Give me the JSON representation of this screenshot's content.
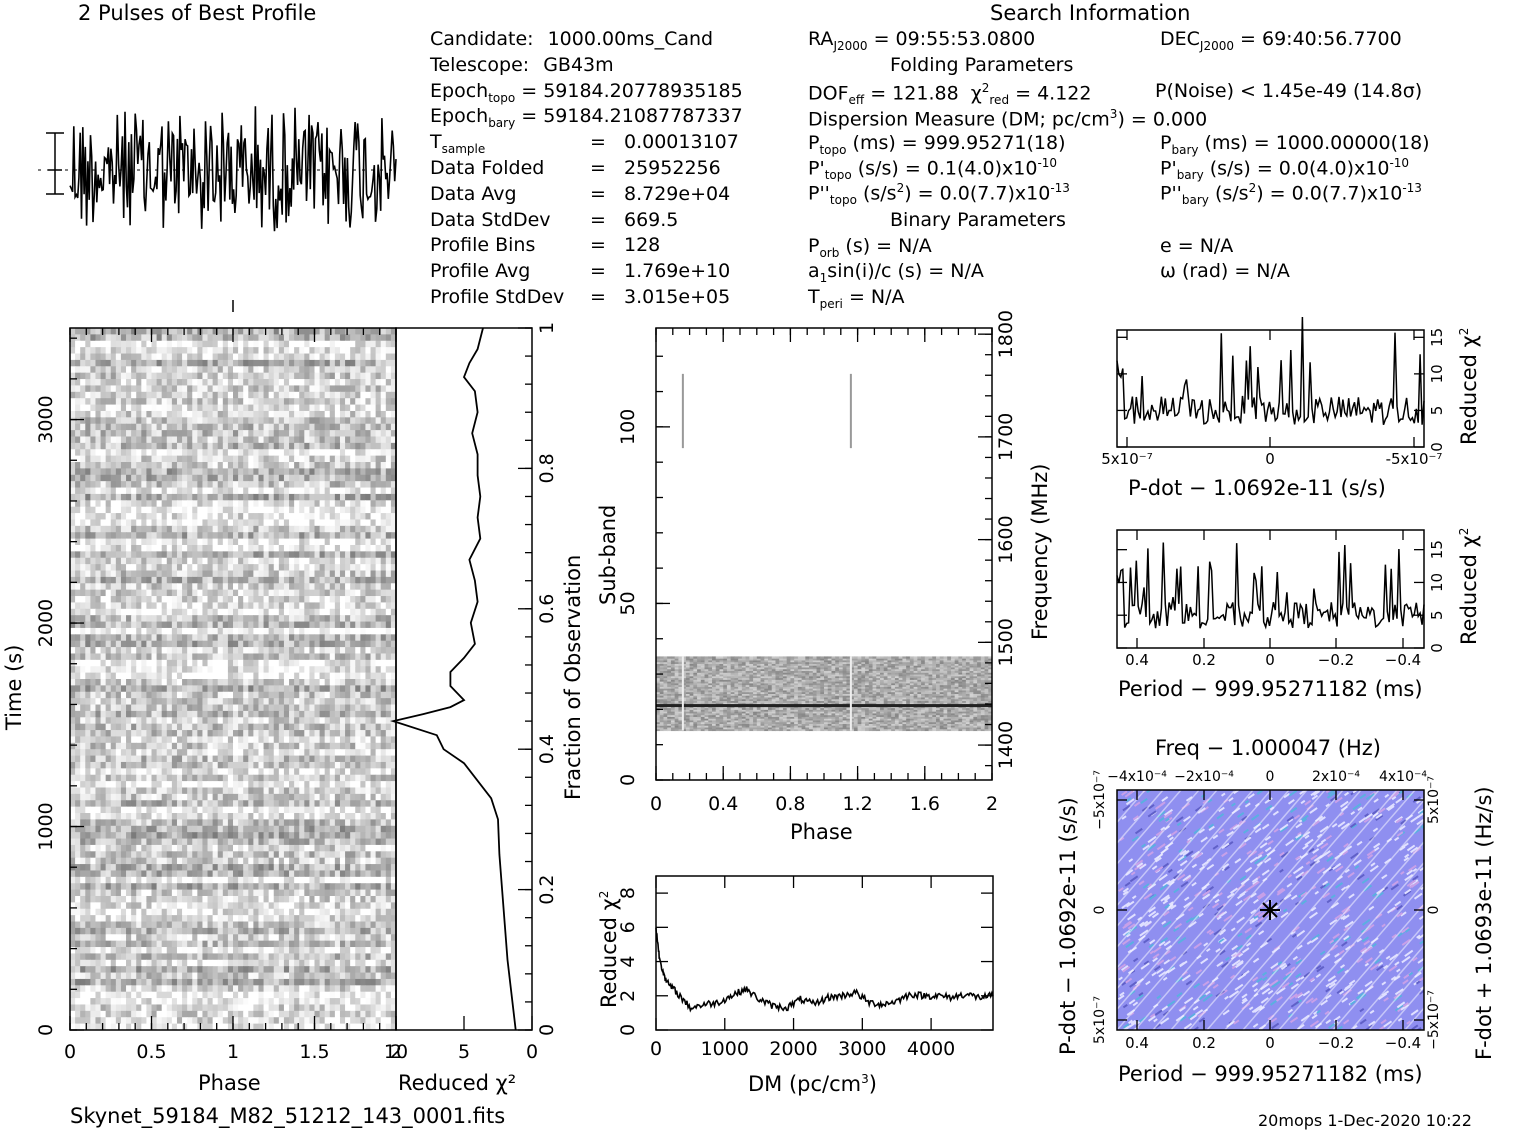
{
  "title_profile": "2 Pulses of Best Profile",
  "title_search": "Search Information",
  "info_left": [
    {
      "label": "Candidate:",
      "value": "1000.00ms_Cand"
    },
    {
      "label": "Telescope:",
      "value": "GB43m"
    },
    {
      "label": "Epoch",
      "sub": "topo",
      "value": "= 59184.20778935185"
    },
    {
      "label": "Epoch",
      "sub": "bary",
      "value": "= 59184.21087787337"
    },
    {
      "label": "T",
      "sub": "sample",
      "eq": "=",
      "value": "0.00013107"
    },
    {
      "label": "Data Folded",
      "eq": "=",
      "value": "25952256"
    },
    {
      "label": "Data Avg",
      "eq": "=",
      "value": "8.729e+04"
    },
    {
      "label": "Data StdDev",
      "eq": "=",
      "value": "669.5"
    },
    {
      "label": "Profile Bins",
      "eq": "=",
      "value": "128"
    },
    {
      "label": "Profile Avg",
      "eq": "=",
      "value": "1.769e+10"
    },
    {
      "label": "Profile StdDev",
      "eq": "=",
      "value": "3.015e+05"
    }
  ],
  "info_mid": {
    "ra": "RA",
    "ra_sub": "J2000",
    "ra_value": "= 09:55:53.0800",
    "dec": "DEC",
    "dec_sub": "J2000",
    "dec_value": "= 69:40:56.7700",
    "folding_title": "Folding Parameters",
    "dof": "DOF",
    "dof_sub": "eff",
    "dof_value": "= 121.88",
    "chi": "χ",
    "chi_sup": "2",
    "chi_sub": "red",
    "chi_value": "= 4.122",
    "pnoise": "P(Noise) < 1.45e-49   (14.8σ)",
    "dm_line_a": "Dispersion Measure (DM; pc/cm",
    "dm_line_sup": "3",
    "dm_line_b": ") = 0.000",
    "ptopo": "P",
    "ptopo_sub": "topo",
    "ptopo_value": "(ms)  =   999.95271(18)",
    "pbary": "P",
    "pbary_sub": "bary",
    "pbary_value": "(ms)  =   1000.00000(18)",
    "pdtopo": "P'",
    "pdtopo_sub": "topo",
    "pdtopo_value": "(s/s)  =   0.1(4.0)x10",
    "pdtopo_exp": "-10",
    "pdbary": "P'",
    "pdbary_sub": "bary",
    "pdbary_value": "(s/s) = 0.0(4.0)x10",
    "pdbary_exp": "-10",
    "pddtopo": "P''",
    "pddtopo_sub": "topo",
    "pddtopo_value": "(s/s",
    "pddtopo_value2": ") = 0.0(7.7)x10",
    "pddtopo_exp": "-13",
    "pddbary": "P''",
    "pddbary_sub": "bary",
    "pddbary_value": "(s/s",
    "pddbary_value2": ") = 0.0(7.7)x10",
    "pddbary_exp": "-13",
    "binary_title": "Binary Parameters",
    "porb": "P",
    "porb_sub": "orb",
    "porb_value": "(s) = N/A",
    "e_value": "e = N/A",
    "asini_a": "a",
    "asini_sub": "1",
    "asini_b": "sin(i)/c (s) = N/A",
    "omega_value": "ω (rad) = N/A",
    "tperi": "T",
    "tperi_sub": "peri",
    "tperi_value": "= N/A"
  },
  "footer_file": "Skynet_59184_M82_51212_143_0001.fits",
  "footer_right": "20mops   1-Dec-2020 10:22",
  "colors": {
    "line": "#000000",
    "grey": "#888888",
    "pp_bg": "#8f8ff0",
    "pp_hi": "#e0e0ff"
  },
  "chart_data": [
    {
      "type": "line",
      "name": "profile",
      "title": "2 Pulses of Best Profile",
      "x_range": [
        0,
        2
      ],
      "note_pulse_count": 2
    },
    {
      "type": "heatmap",
      "name": "time-phase",
      "xlabel": "Phase",
      "ylabel": "Time (s)",
      "xlim": [
        0,
        2
      ],
      "ylim": [
        0,
        3450
      ],
      "xticks": [
        "0",
        "0.5",
        "1",
        "1.5",
        "2"
      ],
      "yticks": [
        "0",
        "1000",
        "2000",
        "3000"
      ],
      "y2label": "Fraction of Observation",
      "y2ticks": [
        "0",
        "0.2",
        "0.4",
        "0.6",
        "0.8",
        "1"
      ]
    },
    {
      "type": "line",
      "name": "chi-vs-time",
      "xlabel": "Reduced χ²",
      "xticks": [
        "10",
        "5",
        "0"
      ],
      "xlim": [
        10,
        0
      ],
      "x": [
        3.6,
        4.0,
        4.6,
        5.0,
        4.2,
        4.0,
        4.4,
        4.0,
        4.0,
        3.8,
        4.0,
        3.8,
        4.6,
        4.2,
        4.0,
        4.5,
        4.2,
        5.0,
        6.0,
        6.0,
        5.0,
        6.0,
        8.0,
        10.2,
        7.0,
        6.5,
        5.0,
        3.0,
        2.5,
        2.4,
        2.2,
        2.0,
        1.8,
        1.5,
        1.2
      ],
      "fraction": [
        1.0,
        0.97,
        0.95,
        0.93,
        0.91,
        0.88,
        0.85,
        0.82,
        0.79,
        0.76,
        0.73,
        0.7,
        0.67,
        0.64,
        0.61,
        0.58,
        0.55,
        0.53,
        0.51,
        0.49,
        0.47,
        0.46,
        0.45,
        0.44,
        0.42,
        0.4,
        0.38,
        0.33,
        0.3,
        0.25,
        0.2,
        0.15,
        0.1,
        0.05,
        0.0
      ]
    },
    {
      "type": "heatmap",
      "name": "subband-phase",
      "xlabel": "Phase",
      "ylabel": "Sub-band",
      "xlim": [
        0,
        2
      ],
      "ylim": [
        0,
        128
      ],
      "xticks": [
        "0",
        "0.4",
        "0.8",
        "1.2",
        "1.6",
        "2"
      ],
      "yticks": [
        "0",
        "50",
        "100"
      ],
      "y2label": "Frequency (MHz)",
      "y2ticks": [
        "1400",
        "1500",
        "1600",
        "1700",
        "1800"
      ],
      "band_range": [
        14,
        35
      ],
      "bright_subband": 21
    },
    {
      "type": "line",
      "name": "chi-vs-dm",
      "xlabel": "DM (pc/cm³)",
      "ylabel": "Reduced χ²",
      "xlim": [
        0,
        4900
      ],
      "ylim": [
        0,
        9
      ],
      "xticks": [
        "0",
        "1000",
        "2000",
        "3000",
        "4000"
      ],
      "yticks": [
        "0",
        "2",
        "4",
        "6",
        "8"
      ],
      "x": [
        0,
        50,
        150,
        300,
        500,
        700,
        900,
        1100,
        1300,
        1500,
        1700,
        1900,
        2100,
        2300,
        2500,
        2700,
        2900,
        3100,
        3300,
        3500,
        3700,
        3900,
        4100,
        4300,
        4500,
        4700,
        4900
      ],
      "y": [
        6.0,
        4.2,
        2.8,
        2.2,
        1.3,
        1.5,
        1.6,
        2.0,
        2.4,
        1.8,
        1.4,
        1.3,
        1.8,
        1.5,
        1.9,
        2.0,
        2.2,
        1.6,
        1.5,
        1.7,
        2.1,
        2.0,
        2.0,
        1.9,
        2.1,
        1.9,
        2.0
      ]
    },
    {
      "type": "line",
      "name": "chi-vs-pdot",
      "xlabel": "P-dot − 1.0692e-11 (s/s)",
      "ylabel": "Reduced χ²",
      "xticks": [
        "5x10⁻⁷",
        "0",
        "-5x10⁻⁷"
      ],
      "yticks": [
        "0",
        "5",
        "10",
        "15"
      ],
      "ylim": [
        0,
        16
      ]
    },
    {
      "type": "line",
      "name": "chi-vs-period",
      "xlabel": "Period − 999.95271182 (ms)",
      "ylabel": "Reduced χ²",
      "xticks": [
        "0.4",
        "0.2",
        "0",
        "−0.2",
        "−0.4"
      ],
      "yticks": [
        "0",
        "5",
        "10",
        "15"
      ],
      "ylim": [
        0,
        18
      ]
    },
    {
      "type": "heatmap",
      "name": "period-pdot",
      "title": "Freq − 1.000047 (Hz)",
      "xlabel": "Period − 999.95271182 (ms)",
      "ylabel": "P-dot − 1.0692e-11 (s/s)",
      "y2label": "F-dot + 1.0693e-11 (Hz/s)",
      "xticks": [
        "0.4",
        "0.2",
        "0",
        "−0.2",
        "−0.4"
      ],
      "topticks": [
        "−4x10⁻⁴",
        "−2x10⁻⁴",
        "0",
        "2x10⁻⁴",
        "4x10⁻⁴"
      ],
      "yticks": [
        "−5x10⁻⁷",
        "0",
        "5x10⁻⁷"
      ],
      "y2ticks": [
        "5x10⁻⁷",
        "0",
        "−5x10⁻⁷"
      ]
    }
  ]
}
